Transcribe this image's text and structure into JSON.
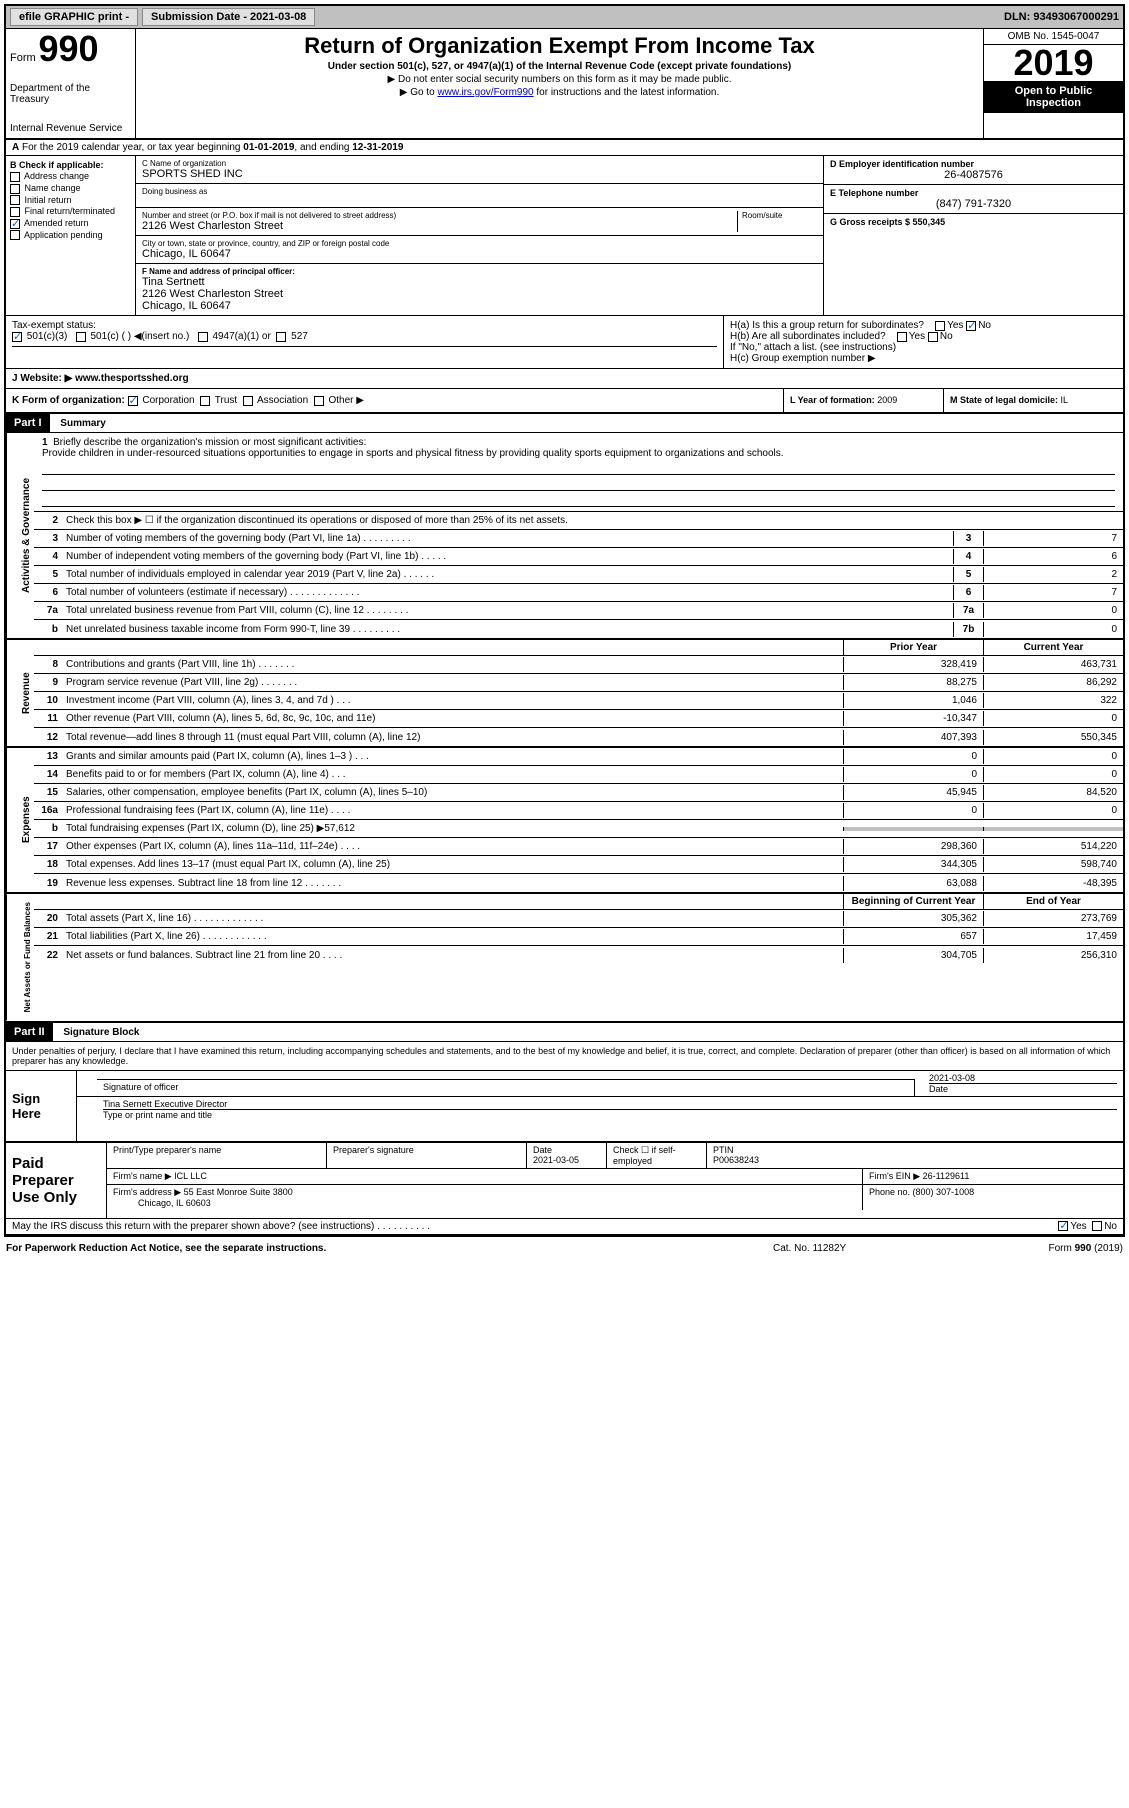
{
  "topbar": {
    "efile": "efile GRAPHIC print -",
    "submission_label": "Submission Date - 2021-03-08",
    "dln": "DLN: 93493067000291"
  },
  "header": {
    "form_label": "Form",
    "form_num": "990",
    "dept": "Department of the Treasury",
    "irs": "Internal Revenue Service",
    "title": "Return of Organization Exempt From Income Tax",
    "sub1": "Under section 501(c), 527, or 4947(a)(1) of the Internal Revenue Code (except private foundations)",
    "sub2": "▶ Do not enter social security numbers on this form as it may be made public.",
    "sub3_a": "▶ Go to ",
    "sub3_link": "www.irs.gov/Form990",
    "sub3_b": " for instructions and the latest information.",
    "omb": "OMB No. 1545-0047",
    "year": "2019",
    "inspect": "Open to Public Inspection"
  },
  "period": {
    "a": "A",
    "text_a": "For the 2019 calendar year, or tax year beginning ",
    "begin": "01-01-2019",
    "text_b": ", and ending ",
    "end": "12-31-2019"
  },
  "colB": {
    "label": "B Check if applicable:",
    "items": [
      "Address change",
      "Name change",
      "Initial return",
      "Final return/terminated",
      "Amended return",
      "Application pending"
    ],
    "checked": [
      false,
      false,
      false,
      false,
      true,
      false
    ]
  },
  "orgInfo": {
    "name_lbl": "C Name of organization",
    "name": "SPORTS SHED INC",
    "dba_lbl": "Doing business as",
    "dba": "",
    "addr_lbl": "Number and street (or P.O. box if mail is not delivered to street address)",
    "suite_lbl": "Room/suite",
    "addr": "2126 West Charleston Street",
    "city_lbl": "City or town, state or province, country, and ZIP or foreign postal code",
    "city": "Chicago, IL  60647",
    "officer_lbl": "F Name and address of principal officer:",
    "officer_name": "Tina Sertnett",
    "officer_addr1": "2126 West Charleston Street",
    "officer_addr2": "Chicago, IL  60647"
  },
  "colD": {
    "ein_lbl": "D Employer identification number",
    "ein": "26-4087576",
    "phone_lbl": "E Telephone number",
    "phone": "(847) 791-7320",
    "gross_lbl": "G Gross receipts $ ",
    "gross": "550,345"
  },
  "colH": {
    "ha": "H(a) Is this a group return for subordinates?",
    "hb": "H(b) Are all subordinates included?",
    "hb_note": "If \"No,\" attach a list. (see instructions)",
    "hc": "H(c) Group exemption number ▶"
  },
  "taxExempt": {
    "label": "Tax-exempt status:",
    "opt1": "501(c)(3)",
    "opt2": "501(c) (  ) ◀(insert no.)",
    "opt3": "4947(a)(1) or",
    "opt4": "527"
  },
  "website": {
    "label": "J   Website: ▶",
    "url": "www.thesportsshed.org"
  },
  "formOrg": {
    "k": "K Form of organization:",
    "opts": [
      "Corporation",
      "Trust",
      "Association",
      "Other ▶"
    ],
    "l_label": "L Year of formation: ",
    "l_val": "2009",
    "m_label": "M State of legal domicile: ",
    "m_val": "IL"
  },
  "part1": {
    "hdr": "Part I",
    "title": "Summary"
  },
  "mission": {
    "num": "1",
    "label": "Briefly describe the organization's mission or most significant activities:",
    "text": "Provide children in under-resourced situations opportunities to engage in sports and physical fitness by providing quality sports equipment to organizations and schools."
  },
  "gov": {
    "tab": "Activities & Governance",
    "rows": [
      {
        "n": "2",
        "t": "Check this box ▶ ☐ if the organization discontinued its operations or disposed of more than 25% of its net assets.",
        "box": "",
        "v": ""
      },
      {
        "n": "3",
        "t": "Number of voting members of the governing body (Part VI, line 1a)   .    .    .    .    .    .    .    .    .",
        "box": "3",
        "v": "7"
      },
      {
        "n": "4",
        "t": "Number of independent voting members of the governing body (Part VI, line 1b)   .    .    .    .    .",
        "box": "4",
        "v": "6"
      },
      {
        "n": "5",
        "t": "Total number of individuals employed in calendar year 2019 (Part V, line 2a)   .    .    .    .    .    .",
        "box": "5",
        "v": "2"
      },
      {
        "n": "6",
        "t": "Total number of volunteers (estimate if necessary)    .    .    .    .    .    .    .    .    .    .    .    .    .",
        "box": "6",
        "v": "7"
      },
      {
        "n": "7a",
        "t": "Total unrelated business revenue from Part VIII, column (C), line 12   .    .    .    .    .    .    .    .",
        "box": "7a",
        "v": "0"
      },
      {
        "n": "b",
        "t": "Net unrelated business taxable income from Form 990-T, line 39   .    .    .    .    .    .    .    .    .",
        "box": "7b",
        "v": "0"
      }
    ]
  },
  "revenue": {
    "tab": "Revenue",
    "hdr_prior": "Prior Year",
    "hdr_current": "Current Year",
    "rows": [
      {
        "n": "8",
        "t": "Contributions and grants (Part VIII, line 1h)    .    .    .    .    .    .    .",
        "p": "328,419",
        "c": "463,731"
      },
      {
        "n": "9",
        "t": "Program service revenue (Part VIII, line 2g)    .    .    .    .    .    .    .",
        "p": "88,275",
        "c": "86,292"
      },
      {
        "n": "10",
        "t": "Investment income (Part VIII, column (A), lines 3, 4, and 7d )    .    .    .",
        "p": "1,046",
        "c": "322"
      },
      {
        "n": "11",
        "t": "Other revenue (Part VIII, column (A), lines 5, 6d, 8c, 9c, 10c, and 11e)",
        "p": "-10,347",
        "c": "0"
      },
      {
        "n": "12",
        "t": "Total revenue—add lines 8 through 11 (must equal Part VIII, column (A), line 12)",
        "p": "407,393",
        "c": "550,345"
      }
    ]
  },
  "expenses": {
    "tab": "Expenses",
    "rows": [
      {
        "n": "13",
        "t": "Grants and similar amounts paid (Part IX, column (A), lines 1–3 )    .    .    .",
        "p": "0",
        "c": "0"
      },
      {
        "n": "14",
        "t": "Benefits paid to or for members (Part IX, column (A), line 4)    .    .    .",
        "p": "0",
        "c": "0"
      },
      {
        "n": "15",
        "t": "Salaries, other compensation, employee benefits (Part IX, column (A), lines 5–10)",
        "p": "45,945",
        "c": "84,520"
      },
      {
        "n": "16a",
        "t": "Professional fundraising fees (Part IX, column (A), line 11e)    .    .    .    .",
        "p": "0",
        "c": "0"
      },
      {
        "n": "b",
        "t": "Total fundraising expenses (Part IX, column (D), line 25) ▶57,612",
        "p": "",
        "c": "",
        "shaded": true
      },
      {
        "n": "17",
        "t": "Other expenses (Part IX, column (A), lines 11a–11d, 11f–24e)    .    .    .    .",
        "p": "298,360",
        "c": "514,220"
      },
      {
        "n": "18",
        "t": "Total expenses. Add lines 13–17 (must equal Part IX, column (A), line 25)",
        "p": "344,305",
        "c": "598,740"
      },
      {
        "n": "19",
        "t": "Revenue less expenses. Subtract line 18 from line 12   .    .    .    .    .    .    .",
        "p": "63,088",
        "c": "-48,395"
      }
    ]
  },
  "netassets": {
    "tab": "Net Assets or Fund Balances",
    "hdr_begin": "Beginning of Current Year",
    "hdr_end": "End of Year",
    "rows": [
      {
        "n": "20",
        "t": "Total assets (Part X, line 16)   .    .    .    .    .    .    .    .    .    .    .    .    .",
        "p": "305,362",
        "c": "273,769"
      },
      {
        "n": "21",
        "t": "Total liabilities (Part X, line 26)   .    .    .    .    .    .    .    .    .    .    .    .",
        "p": "657",
        "c": "17,459"
      },
      {
        "n": "22",
        "t": "Net assets or fund balances. Subtract line 21 from line 20    .    .    .    .",
        "p": "304,705",
        "c": "256,310"
      }
    ]
  },
  "part2": {
    "hdr": "Part II",
    "title": "Signature Block"
  },
  "penalty": "Under penalties of perjury, I declare that I have examined this return, including accompanying schedules and statements, and to the best of my knowledge and belief, it is true, correct, and complete. Declaration of preparer (other than officer) is based on all information of which preparer has any knowledge.",
  "sign": {
    "here": "Sign Here",
    "sig_lbl": "Signature of officer",
    "date_lbl": "Date",
    "date": "2021-03-08",
    "name": "Tina Sernett Executive Director",
    "name_lbl": "Type or print name and title"
  },
  "paid": {
    "label": "Paid Preparer Use Only",
    "prep_name_lbl": "Print/Type preparer's name",
    "prep_sig_lbl": "Preparer's signature",
    "prep_date_lbl": "Date",
    "prep_date": "2021-03-05",
    "self_lbl": "Check ☐ if self-employed",
    "ptin_lbl": "PTIN",
    "ptin": "P00638243",
    "firm_lbl": "Firm's name    ▶",
    "firm": "ICL LLC",
    "ein_lbl": "Firm's EIN ▶",
    "ein": "26-1129611",
    "addr_lbl": "Firm's address ▶",
    "addr1": "55 East Monroe Suite 3800",
    "addr2": "Chicago, IL  60603",
    "phone_lbl": "Phone no. ",
    "phone": "(800) 307-1008"
  },
  "discuss": {
    "text": "May the IRS discuss this return with the preparer shown above? (see instructions)    .    .    .    .    .    .    .    .    .    .",
    "yes": "Yes",
    "no": "No"
  },
  "footer": {
    "left": "For Paperwork Reduction Act Notice, see the separate instructions.",
    "mid": "Cat. No. 11282Y",
    "right": "Form 990 (2019)"
  }
}
